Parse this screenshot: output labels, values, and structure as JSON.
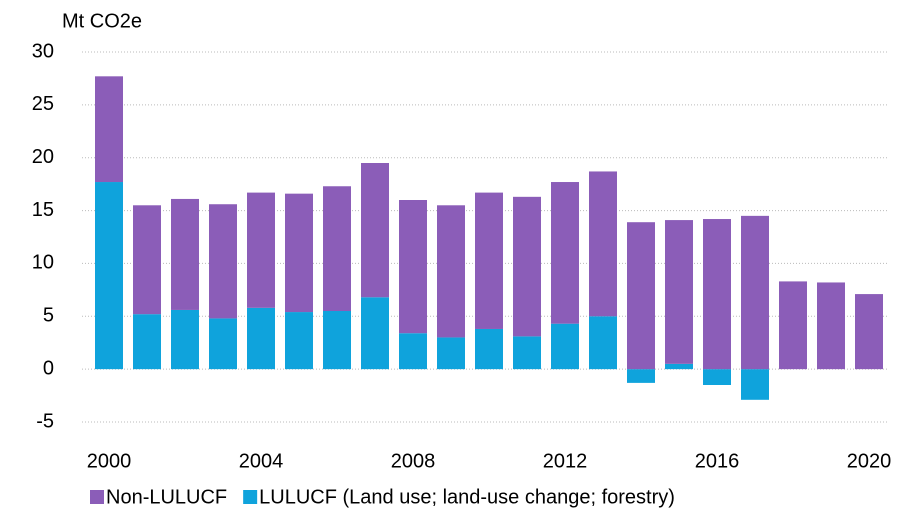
{
  "chart_data": {
    "type": "stacked_bar",
    "y_axis_label": "Mt CO2e",
    "categories": [
      "2000",
      null,
      null,
      null,
      "2004",
      null,
      null,
      null,
      "2008",
      null,
      null,
      null,
      "2012",
      null,
      null,
      null,
      "2016",
      null,
      null,
      null,
      "2020"
    ],
    "series": [
      {
        "name": "Non-LULUCF",
        "color": "#8b5db8",
        "values": [
          10.0,
          10.3,
          10.5,
          10.8,
          10.9,
          11.2,
          11.8,
          12.7,
          12.6,
          12.5,
          12.9,
          13.2,
          13.4,
          13.7,
          13.9,
          13.6,
          14.2,
          14.5,
          8.3,
          8.2,
          7.1
        ]
      },
      {
        "name": "LULUCF (Land use; land-use change; forestry)",
        "color": "#0fa3dc",
        "values": [
          17.7,
          5.2,
          5.6,
          4.8,
          5.8,
          5.4,
          5.5,
          6.8,
          3.4,
          3.0,
          3.8,
          3.1,
          4.3,
          5.0,
          -1.3,
          0.5,
          -1.5,
          -2.9,
          0,
          0,
          0
        ]
      }
    ],
    "ylim": [
      -5,
      30
    ],
    "yticks": [
      -5,
      0,
      5,
      10,
      15,
      20,
      25,
      30
    ],
    "grid": true,
    "legend": "bottom"
  }
}
